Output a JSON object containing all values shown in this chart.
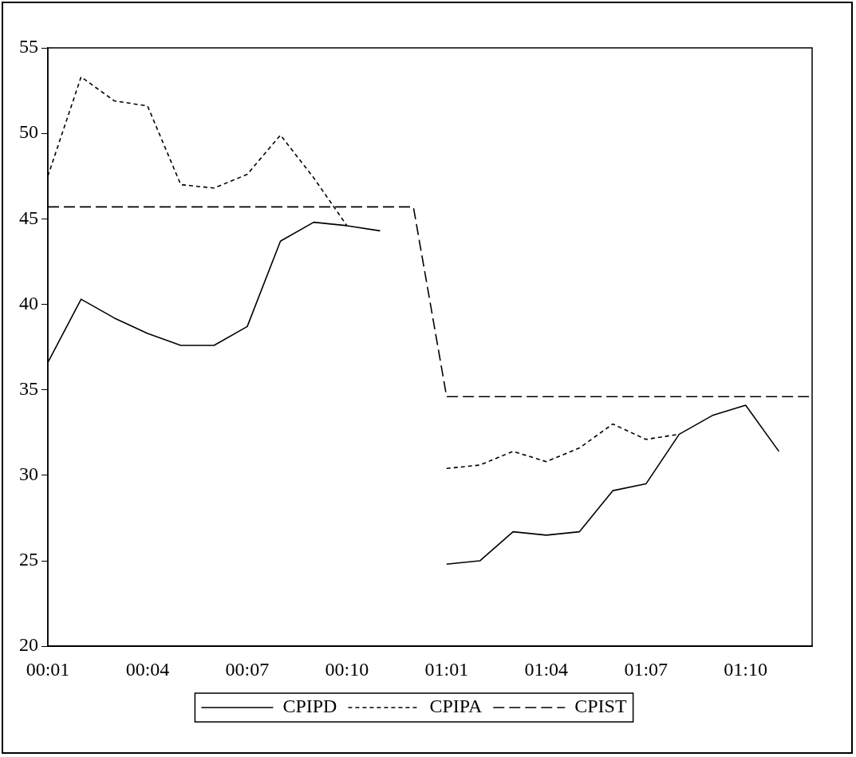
{
  "chart_data": {
    "type": "line",
    "categories": [
      "00:01",
      null,
      null,
      "00:04",
      null,
      null,
      "00:07",
      null,
      null,
      "00:10",
      null,
      null,
      "01:01",
      null,
      null,
      "01:04",
      null,
      null,
      "01:07",
      null,
      null,
      "01:10",
      null,
      null
    ],
    "series": [
      {
        "name": "CPIPD",
        "color": "#000000",
        "line_style": "solid",
        "values": [
          36.6,
          40.3,
          39.2,
          38.3,
          37.6,
          37.6,
          38.7,
          43.7,
          44.8,
          44.6,
          44.3,
          null,
          24.8,
          25.0,
          26.7,
          26.5,
          26.7,
          29.1,
          29.5,
          32.4,
          33.5,
          34.1,
          31.4,
          null
        ]
      },
      {
        "name": "CPIPA",
        "color": "#000000",
        "line_style": "dotted",
        "values": [
          47.5,
          53.3,
          51.9,
          51.6,
          47.0,
          46.8,
          47.6,
          49.9,
          47.4,
          44.6,
          null,
          null,
          30.4,
          30.6,
          31.4,
          30.8,
          31.6,
          33.0,
          32.1,
          32.4,
          null,
          null,
          null,
          null
        ]
      },
      {
        "name": "CPIST",
        "color": "#000000",
        "line_style": "dashed",
        "values": [
          45.7,
          45.7,
          45.7,
          45.7,
          45.7,
          45.7,
          45.7,
          45.7,
          45.7,
          45.7,
          45.7,
          45.7,
          34.6,
          34.6,
          34.6,
          34.6,
          34.6,
          34.6,
          34.6,
          34.6,
          34.6,
          34.6,
          34.6,
          34.6
        ]
      }
    ],
    "ylim": [
      20,
      55
    ],
    "yticks": [
      20,
      25,
      30,
      35,
      40,
      45,
      50,
      55
    ],
    "grid": false,
    "legend": "bottom",
    "marker": "none"
  }
}
